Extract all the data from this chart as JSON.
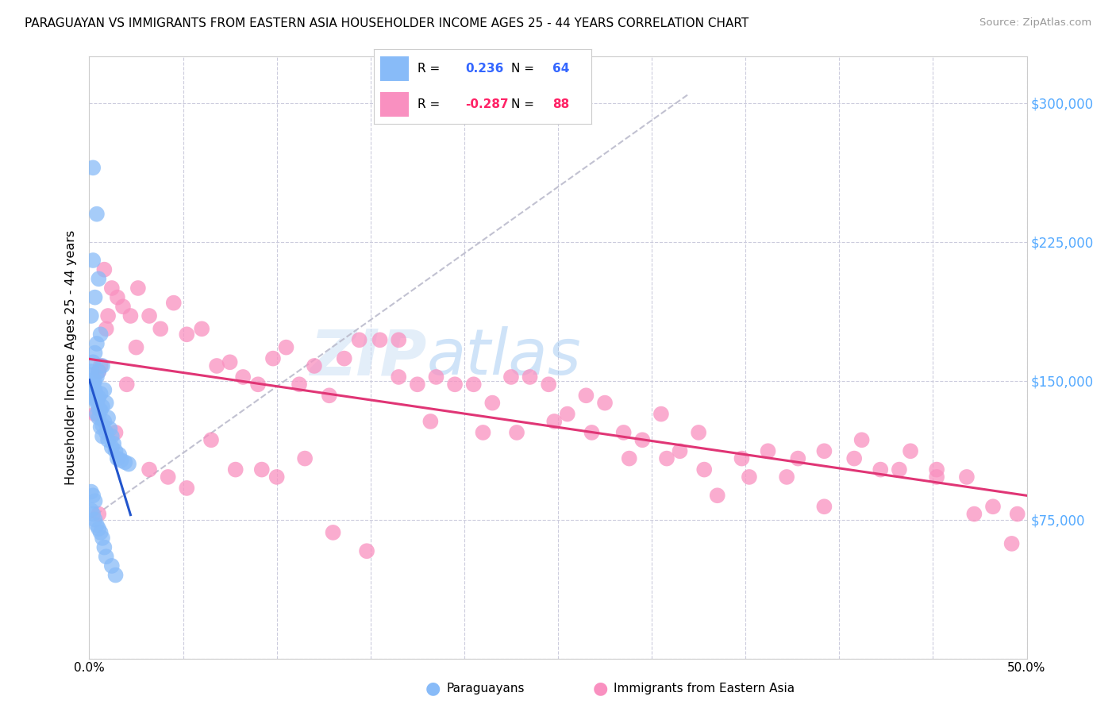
{
  "title": "PARAGUAYAN VS IMMIGRANTS FROM EASTERN ASIA HOUSEHOLDER INCOME AGES 25 - 44 YEARS CORRELATION CHART",
  "source": "Source: ZipAtlas.com",
  "ylabel": "Householder Income Ages 25 - 44 years",
  "xlim": [
    0,
    0.5
  ],
  "ylim": [
    0,
    325000
  ],
  "xticks": [
    0.0,
    0.05,
    0.1,
    0.15,
    0.2,
    0.25,
    0.3,
    0.35,
    0.4,
    0.45,
    0.5
  ],
  "yticks": [
    0,
    75000,
    150000,
    225000,
    300000
  ],
  "ytick_labels": [
    "",
    "$75,000",
    "$150,000",
    "$225,000",
    "$300,000"
  ],
  "legend_label1": "Paraguayans",
  "legend_label2": "Immigrants from Eastern Asia",
  "R1": "0.236",
  "N1": "64",
  "R2": "-0.287",
  "N2": "88",
  "color1": "#88bbf8",
  "color2": "#f990c0",
  "trendline1_color": "#2255cc",
  "trendline2_color": "#e03575",
  "ref_line_color": "#bbbbcc",
  "watermark_color": "#cce0f5",
  "right_axis_color": "#55aaff",
  "scatter1_x": [
    0.002,
    0.004,
    0.002,
    0.005,
    0.003,
    0.001,
    0.006,
    0.004,
    0.003,
    0.002,
    0.007,
    0.005,
    0.004,
    0.003,
    0.001,
    0.008,
    0.006,
    0.005,
    0.003,
    0.009,
    0.007,
    0.006,
    0.004,
    0.01,
    0.008,
    0.007,
    0.011,
    0.009,
    0.012,
    0.01,
    0.013,
    0.012,
    0.014,
    0.016,
    0.015,
    0.017,
    0.019,
    0.021,
    0.001,
    0.001,
    0.002,
    0.002,
    0.003,
    0.003,
    0.004,
    0.004,
    0.005,
    0.005,
    0.006,
    0.007,
    0.001,
    0.002,
    0.003,
    0.001,
    0.002,
    0.003,
    0.004,
    0.005,
    0.006,
    0.007,
    0.008,
    0.009,
    0.012,
    0.014
  ],
  "scatter1_y": [
    265000,
    240000,
    215000,
    205000,
    195000,
    185000,
    175000,
    170000,
    165000,
    160000,
    158000,
    155000,
    152000,
    150000,
    148000,
    145000,
    143000,
    141000,
    140000,
    138000,
    136000,
    134000,
    132000,
    130000,
    128000,
    126000,
    124000,
    122000,
    120000,
    118000,
    116000,
    114000,
    112000,
    110000,
    108000,
    107000,
    106000,
    105000,
    155000,
    153000,
    150000,
    148000,
    145000,
    143000,
    140000,
    138000,
    135000,
    130000,
    125000,
    120000,
    90000,
    88000,
    85000,
    80000,
    78000,
    75000,
    72000,
    70000,
    68000,
    65000,
    60000,
    55000,
    50000,
    45000
  ],
  "scatter2_x": [
    0.005,
    0.008,
    0.01,
    0.012,
    0.015,
    0.018,
    0.022,
    0.026,
    0.032,
    0.038,
    0.045,
    0.052,
    0.06,
    0.068,
    0.075,
    0.082,
    0.09,
    0.098,
    0.105,
    0.112,
    0.12,
    0.128,
    0.136,
    0.144,
    0.155,
    0.165,
    0.175,
    0.185,
    0.195,
    0.205,
    0.215,
    0.225,
    0.235,
    0.245,
    0.255,
    0.265,
    0.275,
    0.285,
    0.295,
    0.305,
    0.315,
    0.325,
    0.335,
    0.348,
    0.362,
    0.378,
    0.392,
    0.408,
    0.422,
    0.438,
    0.452,
    0.468,
    0.482,
    0.495,
    0.003,
    0.006,
    0.009,
    0.014,
    0.02,
    0.025,
    0.032,
    0.042,
    0.052,
    0.065,
    0.078,
    0.092,
    0.1,
    0.115,
    0.13,
    0.148,
    0.165,
    0.182,
    0.21,
    0.228,
    0.248,
    0.268,
    0.288,
    0.308,
    0.328,
    0.352,
    0.372,
    0.392,
    0.412,
    0.432,
    0.452,
    0.472,
    0.492,
    0.005
  ],
  "scatter2_y": [
    155000,
    210000,
    185000,
    200000,
    195000,
    190000,
    185000,
    200000,
    185000,
    178000,
    192000,
    175000,
    178000,
    158000,
    160000,
    152000,
    148000,
    162000,
    168000,
    148000,
    158000,
    142000,
    162000,
    172000,
    172000,
    152000,
    148000,
    152000,
    148000,
    148000,
    138000,
    152000,
    152000,
    148000,
    132000,
    142000,
    138000,
    122000,
    118000,
    132000,
    112000,
    122000,
    88000,
    108000,
    112000,
    108000,
    112000,
    108000,
    102000,
    112000,
    102000,
    98000,
    82000,
    78000,
    132000,
    158000,
    178000,
    122000,
    148000,
    168000,
    102000,
    98000,
    92000,
    118000,
    102000,
    102000,
    98000,
    108000,
    68000,
    58000,
    172000,
    128000,
    122000,
    122000,
    128000,
    122000,
    108000,
    108000,
    102000,
    98000,
    98000,
    82000,
    118000,
    102000,
    98000,
    78000,
    62000,
    78000
  ]
}
